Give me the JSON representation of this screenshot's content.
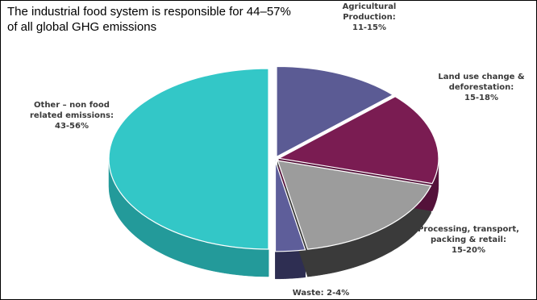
{
  "title_lines": [
    "The industrial food system is responsible for 44–57%",
    "of all global GHG emissions"
  ],
  "chart_data": {
    "type": "pie",
    "style": "3d-exploded",
    "slices": [
      {
        "name": "Agricultural Production",
        "label_lines": [
          "Agricultural",
          "Production:",
          "11-15%"
        ],
        "value": 13,
        "color": "#5b5b94",
        "side_color": "#3e3e6b"
      },
      {
        "name": "Land use change & deforestation",
        "label_lines": [
          "Land use change &",
          "deforestation:",
          "15-18%"
        ],
        "value": 16.5,
        "color": "#7a1c52",
        "side_color": "#54123a"
      },
      {
        "name": "Processing, transport, packing & retail",
        "label_lines": [
          "Processing, transport,",
          "packing & retail:",
          "15-20%"
        ],
        "value": 17.5,
        "color": "#9c9c9c",
        "side_color": "#3a3a3a"
      },
      {
        "name": "Waste",
        "label_lines": [
          "Waste: 2-4%"
        ],
        "value": 3,
        "color": "#5e5e9a",
        "side_color": "#2e2e52"
      },
      {
        "name": "Other – non food related emissions",
        "label_lines": [
          "Other – non food",
          "related emissions:",
          "43-56%"
        ],
        "value": 50,
        "color": "#33c7c7",
        "side_color": "#239a9a"
      }
    ]
  }
}
